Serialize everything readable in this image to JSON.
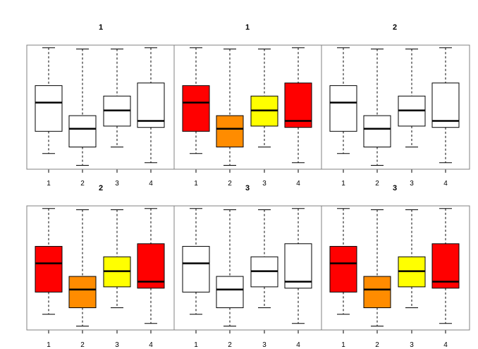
{
  "chart_data": [
    {
      "type": "boxplot",
      "title": "1",
      "categories": [
        "1",
        "2",
        "3",
        "4"
      ],
      "fill_colors": [
        "#ffffff",
        "#ffffff",
        "#ffffff",
        "#ffffff"
      ],
      "boxes": [
        {
          "whisker_low": 0.6,
          "q1": 2.3,
          "median": 4.5,
          "q3": 5.8,
          "whisker_high": 8.7
        },
        {
          "whisker_low": -0.3,
          "q1": 1.1,
          "median": 2.5,
          "q3": 3.5,
          "whisker_high": 8.6
        },
        {
          "whisker_low": 1.1,
          "q1": 2.7,
          "median": 3.9,
          "q3": 5.0,
          "whisker_high": 8.6
        },
        {
          "whisker_low": -0.1,
          "q1": 2.6,
          "median": 3.1,
          "q3": 6.0,
          "whisker_high": 8.7
        }
      ],
      "ylim": [
        -0.6,
        8.9
      ]
    },
    {
      "type": "boxplot",
      "title": "1",
      "categories": [
        "1",
        "2",
        "3",
        "4"
      ],
      "fill_colors": [
        "#ff0000",
        "#ff8c00",
        "#ffff00",
        "#ff0000"
      ],
      "boxes": [
        {
          "whisker_low": 0.6,
          "q1": 2.3,
          "median": 4.5,
          "q3": 5.8,
          "whisker_high": 8.7
        },
        {
          "whisker_low": -0.3,
          "q1": 1.1,
          "median": 2.5,
          "q3": 3.5,
          "whisker_high": 8.6
        },
        {
          "whisker_low": 1.1,
          "q1": 2.7,
          "median": 3.9,
          "q3": 5.0,
          "whisker_high": 8.6
        },
        {
          "whisker_low": -0.1,
          "q1": 2.6,
          "median": 3.1,
          "q3": 6.0,
          "whisker_high": 8.7
        }
      ],
      "ylim": [
        -0.6,
        8.9
      ]
    },
    {
      "type": "boxplot",
      "title": "2",
      "categories": [
        "1",
        "2",
        "3",
        "4"
      ],
      "fill_colors": [
        "#ffffff",
        "#ffffff",
        "#ffffff",
        "#ffffff"
      ],
      "boxes": [
        {
          "whisker_low": 0.6,
          "q1": 2.3,
          "median": 4.5,
          "q3": 5.8,
          "whisker_high": 8.7
        },
        {
          "whisker_low": -0.3,
          "q1": 1.1,
          "median": 2.5,
          "q3": 3.5,
          "whisker_high": 8.6
        },
        {
          "whisker_low": 1.1,
          "q1": 2.7,
          "median": 3.9,
          "q3": 5.0,
          "whisker_high": 8.6
        },
        {
          "whisker_low": -0.1,
          "q1": 2.6,
          "median": 3.1,
          "q3": 6.0,
          "whisker_high": 8.7
        }
      ],
      "ylim": [
        -0.6,
        8.9
      ]
    },
    {
      "type": "boxplot",
      "title": "2",
      "categories": [
        "1",
        "2",
        "3",
        "4"
      ],
      "fill_colors": [
        "#ff0000",
        "#ff8c00",
        "#ffff00",
        "#ff0000"
      ],
      "boxes": [
        {
          "whisker_low": 0.6,
          "q1": 2.3,
          "median": 4.5,
          "q3": 5.8,
          "whisker_high": 8.7
        },
        {
          "whisker_low": -0.3,
          "q1": 1.1,
          "median": 2.5,
          "q3": 3.5,
          "whisker_high": 8.6
        },
        {
          "whisker_low": 1.1,
          "q1": 2.7,
          "median": 3.9,
          "q3": 5.0,
          "whisker_high": 8.6
        },
        {
          "whisker_low": -0.1,
          "q1": 2.6,
          "median": 3.1,
          "q3": 6.0,
          "whisker_high": 8.7
        }
      ],
      "ylim": [
        -0.6,
        8.9
      ]
    },
    {
      "type": "boxplot",
      "title": "3",
      "categories": [
        "1",
        "2",
        "3",
        "4"
      ],
      "fill_colors": [
        "#ffffff",
        "#ffffff",
        "#ffffff",
        "#ffffff"
      ],
      "boxes": [
        {
          "whisker_low": 0.6,
          "q1": 2.3,
          "median": 4.5,
          "q3": 5.8,
          "whisker_high": 8.7
        },
        {
          "whisker_low": -0.3,
          "q1": 1.1,
          "median": 2.5,
          "q3": 3.5,
          "whisker_high": 8.6
        },
        {
          "whisker_low": 1.1,
          "q1": 2.7,
          "median": 3.9,
          "q3": 5.0,
          "whisker_high": 8.6
        },
        {
          "whisker_low": -0.1,
          "q1": 2.6,
          "median": 3.1,
          "q3": 6.0,
          "whisker_high": 8.7
        }
      ],
      "ylim": [
        -0.6,
        8.9
      ]
    },
    {
      "type": "boxplot",
      "title": "3",
      "categories": [
        "1",
        "2",
        "3",
        "4"
      ],
      "fill_colors": [
        "#ff0000",
        "#ff8c00",
        "#ffff00",
        "#ff0000"
      ],
      "boxes": [
        {
          "whisker_low": 0.6,
          "q1": 2.3,
          "median": 4.5,
          "q3": 5.8,
          "whisker_high": 8.7
        },
        {
          "whisker_low": -0.3,
          "q1": 1.1,
          "median": 2.5,
          "q3": 3.5,
          "whisker_high": 8.6
        },
        {
          "whisker_low": 1.1,
          "q1": 2.7,
          "median": 3.9,
          "q3": 5.0,
          "whisker_high": 8.6
        },
        {
          "whisker_low": -0.1,
          "q1": 2.6,
          "median": 3.1,
          "q3": 6.0,
          "whisker_high": 8.7
        }
      ],
      "ylim": [
        -0.6,
        8.9
      ]
    }
  ]
}
